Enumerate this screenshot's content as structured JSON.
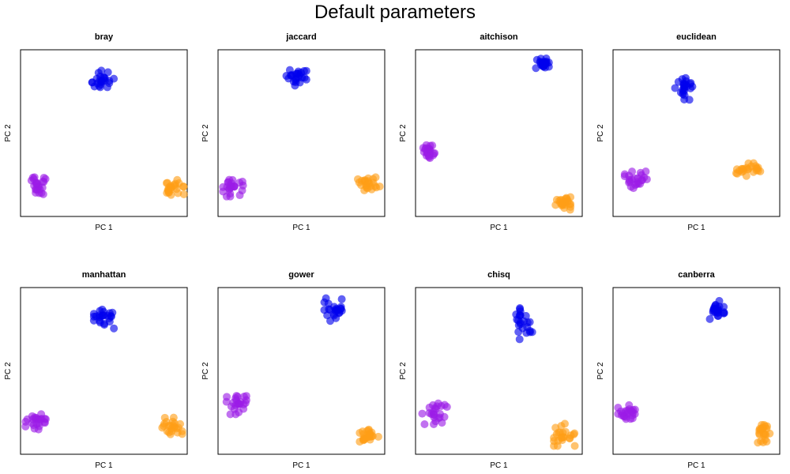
{
  "title": "Default parameters",
  "colors": {
    "cluster_a": "#0000ee",
    "cluster_b": "#9b1ce6",
    "cluster_c": "#ff9e16"
  },
  "chart_data": [
    {
      "type": "scatter",
      "title": "bray",
      "xlabel": "PC 1",
      "ylabel": "PC 2",
      "xlim": [
        0,
        1
      ],
      "ylim": [
        0,
        1
      ],
      "grid": false,
      "legend": "none",
      "series": [
        {
          "color_key": "cluster_a",
          "center": [
            0.5,
            0.82
          ],
          "spread": [
            0.07,
            0.055
          ]
        },
        {
          "color_key": "cluster_b",
          "center": [
            0.1,
            0.19
          ],
          "spread": [
            0.07,
            0.06
          ]
        },
        {
          "color_key": "cluster_c",
          "center": [
            0.92,
            0.17
          ],
          "spread": [
            0.06,
            0.05
          ]
        }
      ]
    },
    {
      "type": "scatter",
      "title": "jaccard",
      "xlabel": "PC 1",
      "ylabel": "PC 2",
      "xlim": [
        0,
        1
      ],
      "ylim": [
        0,
        1
      ],
      "grid": false,
      "legend": "none",
      "series": [
        {
          "color_key": "cluster_a",
          "center": [
            0.47,
            0.84
          ],
          "spread": [
            0.06,
            0.055
          ]
        },
        {
          "color_key": "cluster_b",
          "center": [
            0.09,
            0.17
          ],
          "spread": [
            0.06,
            0.05
          ]
        },
        {
          "color_key": "cluster_c",
          "center": [
            0.9,
            0.19
          ],
          "spread": [
            0.07,
            0.045
          ]
        }
      ]
    },
    {
      "type": "scatter",
      "title": "aitchison",
      "xlabel": "PC 1",
      "ylabel": "PC 2",
      "xlim": [
        0,
        1
      ],
      "ylim": [
        0,
        1
      ],
      "grid": false,
      "legend": "none",
      "series": [
        {
          "color_key": "cluster_a",
          "center": [
            0.76,
            0.92
          ],
          "spread": [
            0.04,
            0.035
          ]
        },
        {
          "color_key": "cluster_b",
          "center": [
            0.08,
            0.39
          ],
          "spread": [
            0.04,
            0.04
          ]
        },
        {
          "color_key": "cluster_c",
          "center": [
            0.89,
            0.08
          ],
          "spread": [
            0.05,
            0.04
          ]
        }
      ]
    },
    {
      "type": "scatter",
      "title": "euclidean",
      "xlabel": "PC 1",
      "ylabel": "PC 2",
      "xlim": [
        0,
        1
      ],
      "ylim": [
        0,
        1
      ],
      "grid": false,
      "legend": "none",
      "series": [
        {
          "color_key": "cluster_a",
          "center": [
            0.43,
            0.77
          ],
          "spread": [
            0.06,
            0.07
          ]
        },
        {
          "color_key": "cluster_b",
          "center": [
            0.14,
            0.22
          ],
          "spread": [
            0.07,
            0.05
          ]
        },
        {
          "color_key": "cluster_c",
          "center": [
            0.8,
            0.28
          ],
          "spread": [
            0.09,
            0.04
          ]
        }
      ]
    },
    {
      "type": "scatter",
      "title": "manhattan",
      "xlabel": "PC 1",
      "ylabel": "PC 2",
      "xlim": [
        0,
        1
      ],
      "ylim": [
        0,
        1
      ],
      "grid": false,
      "legend": "none",
      "series": [
        {
          "color_key": "cluster_a",
          "center": [
            0.5,
            0.82
          ],
          "spread": [
            0.06,
            0.065
          ]
        },
        {
          "color_key": "cluster_b",
          "center": [
            0.1,
            0.2
          ],
          "spread": [
            0.07,
            0.055
          ]
        },
        {
          "color_key": "cluster_c",
          "center": [
            0.91,
            0.17
          ],
          "spread": [
            0.06,
            0.05
          ]
        }
      ]
    },
    {
      "type": "scatter",
      "title": "gower",
      "xlabel": "PC 1",
      "ylabel": "PC 2",
      "xlim": [
        0,
        1
      ],
      "ylim": [
        0,
        1
      ],
      "grid": false,
      "legend": "none",
      "series": [
        {
          "color_key": "cluster_a",
          "center": [
            0.7,
            0.87
          ],
          "spread": [
            0.07,
            0.07
          ]
        },
        {
          "color_key": "cluster_b",
          "center": [
            0.1,
            0.31
          ],
          "spread": [
            0.07,
            0.07
          ]
        },
        {
          "color_key": "cluster_c",
          "center": [
            0.91,
            0.1
          ],
          "spread": [
            0.06,
            0.05
          ]
        }
      ]
    },
    {
      "type": "scatter",
      "title": "chisq",
      "xlabel": "PC 1",
      "ylabel": "PC 2",
      "xlim": [
        0,
        1
      ],
      "ylim": [
        0,
        1
      ],
      "grid": false,
      "legend": "none",
      "series": [
        {
          "color_key": "cluster_a",
          "center": [
            0.64,
            0.8
          ],
          "spread": [
            0.06,
            0.11
          ]
        },
        {
          "color_key": "cluster_b",
          "center": [
            0.12,
            0.25
          ],
          "spread": [
            0.08,
            0.07
          ]
        },
        {
          "color_key": "cluster_c",
          "center": [
            0.9,
            0.12
          ],
          "spread": [
            0.07,
            0.07
          ]
        }
      ]
    },
    {
      "type": "scatter",
      "title": "canberra",
      "xlabel": "PC 1",
      "ylabel": "PC 2",
      "xlim": [
        0,
        1
      ],
      "ylim": [
        0,
        1
      ],
      "grid": false,
      "legend": "none",
      "series": [
        {
          "color_key": "cluster_a",
          "center": [
            0.62,
            0.86
          ],
          "spread": [
            0.05,
            0.06
          ]
        },
        {
          "color_key": "cluster_b",
          "center": [
            0.09,
            0.25
          ],
          "spread": [
            0.06,
            0.05
          ]
        },
        {
          "color_key": "cluster_c",
          "center": [
            0.9,
            0.13
          ],
          "spread": [
            0.04,
            0.06
          ]
        }
      ]
    }
  ]
}
